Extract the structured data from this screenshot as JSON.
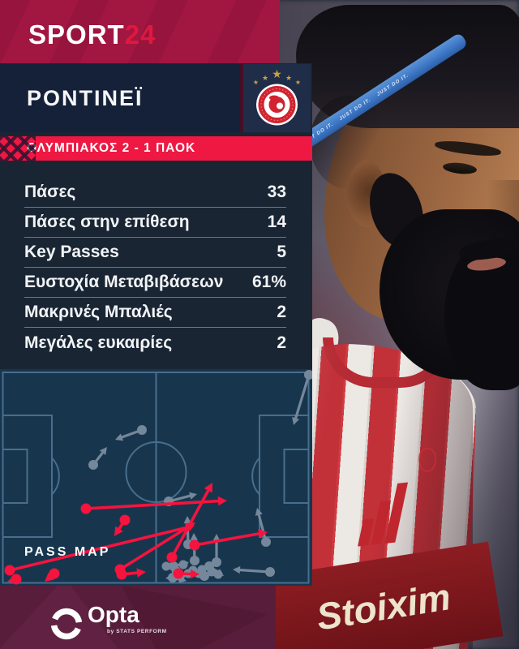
{
  "brand": {
    "sport": "SPORT",
    "two_four": "24"
  },
  "player": {
    "name": "ΡΟΝΤΙΝΕΪ"
  },
  "score_banner": {
    "text": "ΟΛΥΜΠΙΑΚΟΣ 2 - 1 ΠΑΟΚ"
  },
  "stats": {
    "rows": [
      {
        "label": "Πάσες",
        "value": "33"
      },
      {
        "label": "Πάσες στην επίθεση",
        "value": "14"
      },
      {
        "label": "Key Passes",
        "value": "5"
      },
      {
        "label": "Ευστοχία Μεταβιβάσεων",
        "value": "61%"
      },
      {
        "label": "Μακρινές Μπαλιές",
        "value": "2"
      },
      {
        "label": "Μεγάλες ευκαιρίες",
        "value": "2"
      }
    ]
  },
  "pass_map": {
    "label": "PASS MAP"
  },
  "footer": {
    "opta_label": "Opta",
    "opta_sub": "by STATS PERFORM"
  },
  "photo": {
    "jersey_sponsor": "Stoixim",
    "headband_text": "JUST DO IT."
  },
  "chart_data": {
    "type": "scatter",
    "title": "PASS MAP",
    "pitch_units": [
      385,
      267
    ],
    "legend": "arrows from pass origin dot to destination on a horizontal football pitch",
    "series": [
      {
        "name": "grey",
        "color_key": "pass_grey",
        "passes": [
          [
            175,
            75,
            142,
            87
          ],
          [
            115,
            118,
            132,
            96
          ],
          [
            381,
            7,
            362,
            69
          ],
          [
            208,
            163,
            243,
            154
          ],
          [
            328,
            213,
            317,
            171
          ],
          [
            333,
            250,
            287,
            247
          ],
          [
            232,
            216,
            231,
            181
          ],
          [
            240,
            236,
            239,
            202
          ],
          [
            267,
            238,
            267,
            203
          ],
          [
            214,
            243,
            233,
            238
          ],
          [
            252,
            255,
            273,
            250
          ],
          [
            258,
            243,
            276,
            255
          ],
          [
            222,
            255,
            204,
            258
          ],
          [
            213,
            257,
            230,
            261
          ]
        ],
        "dots": [
          [
            205,
            243
          ],
          [
            226,
            241
          ],
          [
            238,
            248
          ],
          [
            249,
            247
          ],
          [
            261,
            250
          ],
          [
            269,
            253
          ],
          [
            245,
            252
          ],
          [
            217,
            248
          ],
          [
            232,
            252
          ]
        ]
      },
      {
        "name": "red",
        "color_key": "pass_red",
        "passes": [
          [
            106,
            172,
            280,
            162
          ],
          [
            12,
            248,
            240,
            193
          ],
          [
            148,
            247,
            241,
            189
          ],
          [
            212,
            232,
            262,
            140
          ],
          [
            240,
            217,
            330,
            201
          ],
          [
            220,
            252,
            246,
            253
          ],
          [
            154,
            186,
            141,
            206
          ],
          [
            67,
            252,
            55,
            262
          ],
          [
            20,
            259,
            9,
            262
          ],
          [
            150,
            253,
            180,
            250
          ]
        ],
        "dots": []
      }
    ]
  },
  "colors": {
    "header_crimson": "#A21642",
    "accent_red": "#EE1843",
    "brand_24_red": "#E2173D",
    "backdrop_navy": "#1A2534",
    "name_band_navy": "#152138",
    "badge_panel_navy": "#1F2D49",
    "pitch_blue": "#17364E",
    "pitch_line": "#4C7190",
    "pass_red": "#F6133E",
    "pass_grey": "#75879A",
    "footer_maroon": "#571D3A",
    "star_gold": "#C9A23E",
    "text_white": "#F2F4F6"
  }
}
